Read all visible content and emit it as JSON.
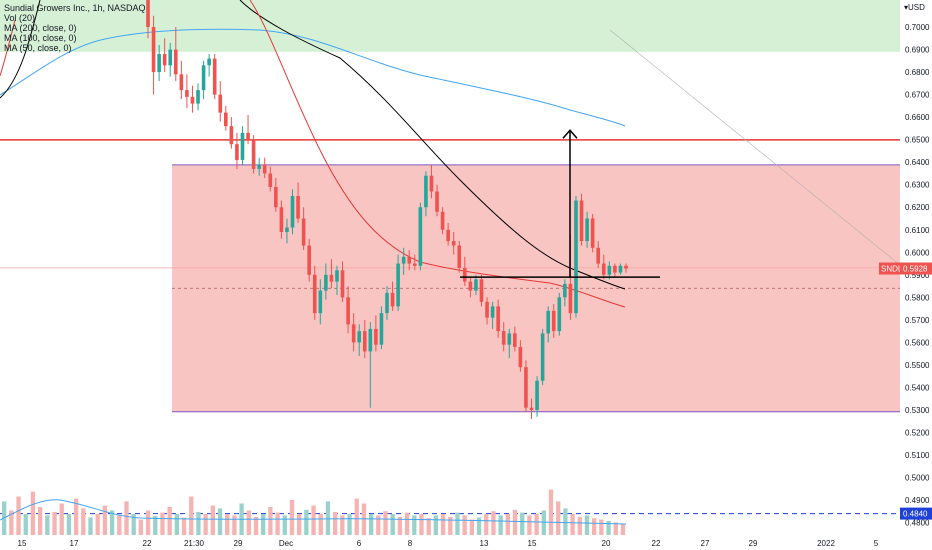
{
  "legend": {
    "symbol": "Sundial Growers Inc., 1h, NASDAQ",
    "vol": "Vol (20)",
    "ma200": "MA (200, close, 0)",
    "ma100": "MA (100, close, 0)",
    "ma50": "MA (50, close, 0)"
  },
  "currency": "USD",
  "colors": {
    "up": "#26a69a",
    "down": "#ef5350",
    "zone_fill": "#f8c5c3",
    "zone_border": "#7e57c2",
    "top_zone": "#d6f0d6",
    "resistance": "#e53935",
    "ma200": "#42a5f5",
    "ma100": "#000000",
    "ma50": "#e53935"
  },
  "chart_data": {
    "type": "candlestick",
    "y_range": [
      0.4745,
      0.712
    ],
    "y_ticks": [
      "0.7000",
      "0.6900",
      "0.6800",
      "0.6700",
      "0.6600",
      "0.6500",
      "0.6400",
      "0.6300",
      "0.6200",
      "0.6100",
      "0.6000",
      "0.5900",
      "0.5800",
      "0.5700",
      "0.5600",
      "0.5500",
      "0.5400",
      "0.5300",
      "0.5200",
      "0.5100",
      "0.5000",
      "0.4900",
      "0.4800"
    ],
    "x_ticks": [
      "15",
      "17",
      "22",
      "21:30",
      "29",
      "Dec",
      "6",
      "8",
      "13",
      "15",
      "20",
      "22",
      "27",
      "29",
      "2022",
      "5"
    ],
    "last_price_label": "SNDL",
    "last_price": "0.5928",
    "volume_ma_label": "0.4840",
    "levels": {
      "green_zone_bottom": 0.689,
      "resistance": 0.6499,
      "range_top": 0.6388,
      "range_bottom": 0.5292,
      "dashed_mid": 0.584,
      "neckline": 0.589,
      "target": 0.6542,
      "last_price_line": 0.5931,
      "volume_ma_line": 0.484
    },
    "candles": [
      {
        "o": 0.715,
        "h": 0.72,
        "l": 0.695,
        "c": 0.7
      },
      {
        "o": 0.7,
        "h": 0.705,
        "l": 0.67,
        "c": 0.68
      },
      {
        "o": 0.68,
        "h": 0.692,
        "l": 0.676,
        "c": 0.688
      },
      {
        "o": 0.688,
        "h": 0.695,
        "l": 0.68,
        "c": 0.683
      },
      {
        "o": 0.683,
        "h": 0.693,
        "l": 0.678,
        "c": 0.69
      },
      {
        "o": 0.69,
        "h": 0.7,
        "l": 0.676,
        "c": 0.679
      },
      {
        "o": 0.679,
        "h": 0.685,
        "l": 0.668,
        "c": 0.672
      },
      {
        "o": 0.672,
        "h": 0.679,
        "l": 0.664,
        "c": 0.669
      },
      {
        "o": 0.669,
        "h": 0.674,
        "l": 0.662,
        "c": 0.666
      },
      {
        "o": 0.666,
        "h": 0.675,
        "l": 0.663,
        "c": 0.672
      },
      {
        "o": 0.672,
        "h": 0.685,
        "l": 0.668,
        "c": 0.683
      },
      {
        "o": 0.683,
        "h": 0.688,
        "l": 0.678,
        "c": 0.686
      },
      {
        "o": 0.686,
        "h": 0.688,
        "l": 0.668,
        "c": 0.67
      },
      {
        "o": 0.67,
        "h": 0.676,
        "l": 0.658,
        "c": 0.662
      },
      {
        "o": 0.662,
        "h": 0.665,
        "l": 0.654,
        "c": 0.656
      },
      {
        "o": 0.656,
        "h": 0.66,
        "l": 0.646,
        "c": 0.648
      },
      {
        "o": 0.648,
        "h": 0.653,
        "l": 0.637,
        "c": 0.641
      },
      {
        "o": 0.641,
        "h": 0.656,
        "l": 0.639,
        "c": 0.653
      },
      {
        "o": 0.653,
        "h": 0.661,
        "l": 0.648,
        "c": 0.65
      },
      {
        "o": 0.65,
        "h": 0.652,
        "l": 0.635,
        "c": 0.637
      },
      {
        "o": 0.637,
        "h": 0.642,
        "l": 0.634,
        "c": 0.639
      },
      {
        "o": 0.639,
        "h": 0.642,
        "l": 0.633,
        "c": 0.635
      },
      {
        "o": 0.635,
        "h": 0.638,
        "l": 0.627,
        "c": 0.629
      },
      {
        "o": 0.629,
        "h": 0.633,
        "l": 0.618,
        "c": 0.62
      },
      {
        "o": 0.62,
        "h": 0.623,
        "l": 0.606,
        "c": 0.609
      },
      {
        "o": 0.609,
        "h": 0.615,
        "l": 0.604,
        "c": 0.611
      },
      {
        "o": 0.611,
        "h": 0.628,
        "l": 0.608,
        "c": 0.625
      },
      {
        "o": 0.625,
        "h": 0.631,
        "l": 0.613,
        "c": 0.615
      },
      {
        "o": 0.615,
        "h": 0.62,
        "l": 0.601,
        "c": 0.603
      },
      {
        "o": 0.603,
        "h": 0.606,
        "l": 0.587,
        "c": 0.59
      },
      {
        "o": 0.59,
        "h": 0.594,
        "l": 0.57,
        "c": 0.573
      },
      {
        "o": 0.573,
        "h": 0.588,
        "l": 0.568,
        "c": 0.583
      },
      {
        "o": 0.583,
        "h": 0.595,
        "l": 0.579,
        "c": 0.59
      },
      {
        "o": 0.59,
        "h": 0.597,
        "l": 0.584,
        "c": 0.587
      },
      {
        "o": 0.587,
        "h": 0.594,
        "l": 0.581,
        "c": 0.592
      },
      {
        "o": 0.592,
        "h": 0.596,
        "l": 0.578,
        "c": 0.58
      },
      {
        "o": 0.58,
        "h": 0.585,
        "l": 0.564,
        "c": 0.568
      },
      {
        "o": 0.568,
        "h": 0.573,
        "l": 0.556,
        "c": 0.56
      },
      {
        "o": 0.56,
        "h": 0.568,
        "l": 0.554,
        "c": 0.565
      },
      {
        "o": 0.565,
        "h": 0.57,
        "l": 0.553,
        "c": 0.556
      },
      {
        "o": 0.556,
        "h": 0.569,
        "l": 0.531,
        "c": 0.566
      },
      {
        "o": 0.566,
        "h": 0.572,
        "l": 0.556,
        "c": 0.559
      },
      {
        "o": 0.559,
        "h": 0.576,
        "l": 0.557,
        "c": 0.573
      },
      {
        "o": 0.573,
        "h": 0.585,
        "l": 0.57,
        "c": 0.582
      },
      {
        "o": 0.582,
        "h": 0.587,
        "l": 0.574,
        "c": 0.576
      },
      {
        "o": 0.576,
        "h": 0.599,
        "l": 0.574,
        "c": 0.595
      },
      {
        "o": 0.595,
        "h": 0.602,
        "l": 0.59,
        "c": 0.598
      },
      {
        "o": 0.598,
        "h": 0.601,
        "l": 0.592,
        "c": 0.595
      },
      {
        "o": 0.595,
        "h": 0.599,
        "l": 0.592,
        "c": 0.594
      },
      {
        "o": 0.594,
        "h": 0.622,
        "l": 0.592,
        "c": 0.62
      },
      {
        "o": 0.62,
        "h": 0.636,
        "l": 0.616,
        "c": 0.634
      },
      {
        "o": 0.634,
        "h": 0.639,
        "l": 0.624,
        "c": 0.627
      },
      {
        "o": 0.627,
        "h": 0.63,
        "l": 0.616,
        "c": 0.618
      },
      {
        "o": 0.618,
        "h": 0.62,
        "l": 0.608,
        "c": 0.61
      },
      {
        "o": 0.61,
        "h": 0.613,
        "l": 0.603,
        "c": 0.605
      },
      {
        "o": 0.605,
        "h": 0.609,
        "l": 0.599,
        "c": 0.603
      },
      {
        "o": 0.603,
        "h": 0.605,
        "l": 0.591,
        "c": 0.593
      },
      {
        "o": 0.593,
        "h": 0.598,
        "l": 0.585,
        "c": 0.587
      },
      {
        "o": 0.587,
        "h": 0.589,
        "l": 0.58,
        "c": 0.583
      },
      {
        "o": 0.583,
        "h": 0.59,
        "l": 0.581,
        "c": 0.588
      },
      {
        "o": 0.588,
        "h": 0.59,
        "l": 0.576,
        "c": 0.578
      },
      {
        "o": 0.578,
        "h": 0.58,
        "l": 0.568,
        "c": 0.571
      },
      {
        "o": 0.571,
        "h": 0.578,
        "l": 0.566,
        "c": 0.576
      },
      {
        "o": 0.576,
        "h": 0.579,
        "l": 0.562,
        "c": 0.565
      },
      {
        "o": 0.565,
        "h": 0.569,
        "l": 0.556,
        "c": 0.559
      },
      {
        "o": 0.559,
        "h": 0.566,
        "l": 0.553,
        "c": 0.564
      },
      {
        "o": 0.564,
        "h": 0.567,
        "l": 0.556,
        "c": 0.558
      },
      {
        "o": 0.558,
        "h": 0.561,
        "l": 0.547,
        "c": 0.549
      },
      {
        "o": 0.549,
        "h": 0.552,
        "l": 0.529,
        "c": 0.531
      },
      {
        "o": 0.531,
        "h": 0.535,
        "l": 0.526,
        "c": 0.53
      },
      {
        "o": 0.53,
        "h": 0.545,
        "l": 0.527,
        "c": 0.543
      },
      {
        "o": 0.543,
        "h": 0.566,
        "l": 0.541,
        "c": 0.564
      },
      {
        "o": 0.564,
        "h": 0.576,
        "l": 0.56,
        "c": 0.574
      },
      {
        "o": 0.574,
        "h": 0.577,
        "l": 0.562,
        "c": 0.565
      },
      {
        "o": 0.565,
        "h": 0.582,
        "l": 0.563,
        "c": 0.58
      },
      {
        "o": 0.58,
        "h": 0.588,
        "l": 0.576,
        "c": 0.586
      },
      {
        "o": 0.586,
        "h": 0.608,
        "l": 0.57,
        "c": 0.573
      },
      {
        "o": 0.573,
        "h": 0.625,
        "l": 0.571,
        "c": 0.623
      },
      {
        "o": 0.623,
        "h": 0.626,
        "l": 0.603,
        "c": 0.605
      },
      {
        "o": 0.605,
        "h": 0.618,
        "l": 0.602,
        "c": 0.615
      },
      {
        "o": 0.615,
        "h": 0.617,
        "l": 0.6,
        "c": 0.602
      },
      {
        "o": 0.602,
        "h": 0.605,
        "l": 0.593,
        "c": 0.595
      },
      {
        "o": 0.595,
        "h": 0.599,
        "l": 0.588,
        "c": 0.59
      },
      {
        "o": 0.59,
        "h": 0.596,
        "l": 0.588,
        "c": 0.594
      },
      {
        "o": 0.594,
        "h": 0.595,
        "l": 0.589,
        "c": 0.591
      },
      {
        "o": 0.591,
        "h": 0.595,
        "l": 0.59,
        "c": 0.594
      },
      {
        "o": 0.594,
        "h": 0.595,
        "l": 0.591,
        "c": 0.5928
      }
    ],
    "volumes": [
      0.48,
      0.35,
      0.55,
      0.3,
      0.62,
      0.4,
      0.28,
      0.33,
      0.45,
      0.3,
      0.52,
      0.38,
      0.25,
      0.3,
      0.42,
      0.35,
      0.28,
      0.48,
      0.3,
      0.22,
      0.35,
      0.27,
      0.32,
      0.4,
      0.3,
      0.25,
      0.55,
      0.33,
      0.3,
      0.42,
      0.38,
      0.3,
      0.28,
      0.45,
      0.35,
      0.26,
      0.3,
      0.4,
      0.32,
      0.28,
      0.5,
      0.3,
      0.36,
      0.42,
      0.3,
      0.48,
      0.33,
      0.28,
      0.3,
      0.52,
      0.45,
      0.3,
      0.28,
      0.34,
      0.3,
      0.26,
      0.32,
      0.28,
      0.3,
      0.24,
      0.28,
      0.3,
      0.26,
      0.32,
      0.28,
      0.22,
      0.25,
      0.3,
      0.34,
      0.28,
      0.3,
      0.36,
      0.32,
      0.28,
      0.3,
      0.35,
      0.65,
      0.48,
      0.38,
      0.3,
      0.26,
      0.28,
      0.24,
      0.22,
      0.2,
      0.18,
      0.16
    ]
  }
}
